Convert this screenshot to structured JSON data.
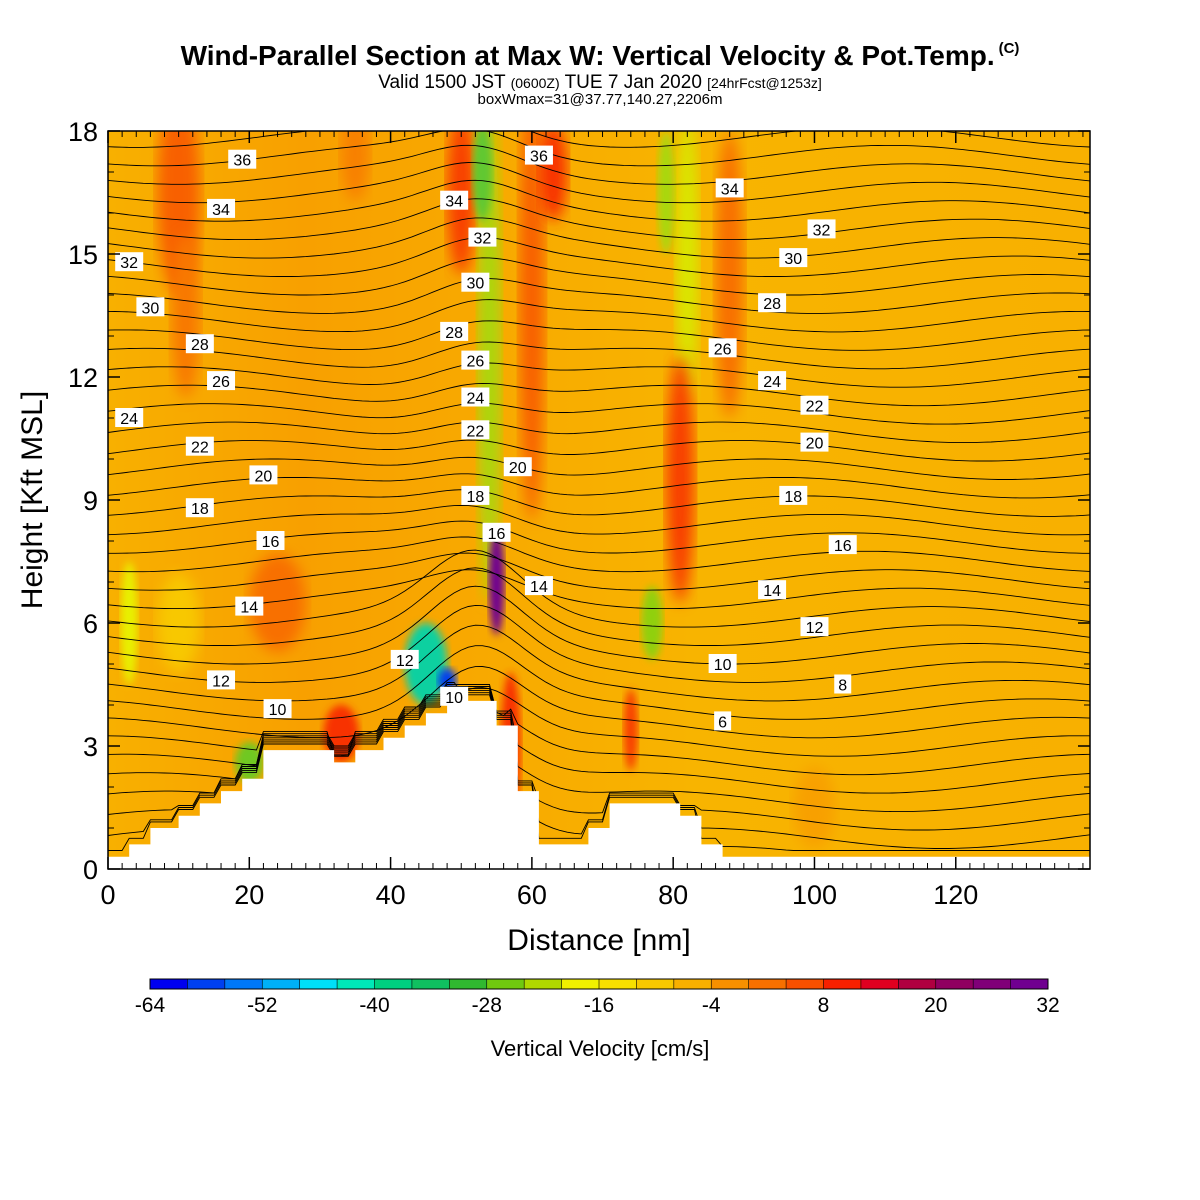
{
  "title": "Wind-Parallel Section at Max W: Vertical Velocity & Pot.Temp.",
  "title_note": "(C)",
  "subtitle": {
    "main": "Valid 1500 JST",
    "utc": "(0600Z)",
    "date": "TUE 7 Jan 2020",
    "fcst": "[24hrFcst@1253z]"
  },
  "subtitle2": "boxWmax=31@37.77,140.27,2206m",
  "chart_data": {
    "type": "heatmap",
    "xlabel": "Distance [nm]",
    "ylabel": "Height [Kft MSL]",
    "xlim": [
      0,
      139
    ],
    "ylim": [
      0,
      18
    ],
    "xticks": [
      0,
      20,
      40,
      60,
      80,
      100,
      120
    ],
    "yticks": [
      0,
      3,
      6,
      9,
      12,
      15,
      18
    ],
    "colorbar": {
      "label": "Vertical Velocity [cm/s]",
      "tick_labels": [
        "-64",
        "-52",
        "-40",
        "-28",
        "-16",
        "-4",
        "8",
        "20",
        "32"
      ],
      "colors": [
        "#0000f0",
        "#0040f0",
        "#0078f8",
        "#00b0f8",
        "#00e0f8",
        "#00e8b8",
        "#00d080",
        "#10c060",
        "#30b830",
        "#70c810",
        "#b0d800",
        "#f0f000",
        "#f8e000",
        "#f8c800",
        "#f8b000",
        "#f89000",
        "#f87000",
        "#f85000",
        "#f82000",
        "#e00020",
        "#b00040",
        "#900060",
        "#800078",
        "#700090"
      ]
    },
    "terrain_profile": {
      "x": [
        0,
        3,
        3,
        6,
        6,
        10,
        10,
        13,
        13,
        16,
        16,
        19,
        19,
        22,
        22,
        26,
        26,
        29,
        29,
        32,
        32,
        35,
        35,
        39,
        39,
        42,
        42,
        45,
        45,
        48,
        48,
        51,
        51,
        55,
        55,
        58,
        58,
        61,
        61,
        64,
        64,
        68,
        68,
        71,
        71,
        74,
        74,
        77,
        77,
        81,
        81,
        84,
        84,
        87,
        87,
        139
      ],
      "y": [
        0.3,
        0.3,
        0.6,
        0.6,
        1.0,
        1.0,
        1.3,
        1.3,
        1.6,
        1.6,
        1.9,
        1.9,
        2.2,
        2.2,
        2.9,
        2.9,
        2.9,
        2.9,
        2.9,
        2.9,
        2.6,
        2.6,
        2.9,
        2.9,
        3.2,
        3.2,
        3.5,
        3.5,
        3.8,
        3.8,
        4.1,
        4.1,
        4.1,
        4.1,
        3.5,
        3.5,
        1.9,
        1.9,
        0.6,
        0.6,
        0.6,
        0.6,
        1.0,
        1.0,
        1.6,
        1.6,
        1.6,
        1.6,
        1.6,
        1.6,
        1.3,
        1.3,
        0.6,
        0.6,
        0.3,
        0.3
      ]
    },
    "theta_contour_labels": [
      {
        "text": "36",
        "x": 19,
        "y": 17.3
      },
      {
        "text": "36",
        "x": 61,
        "y": 17.4
      },
      {
        "text": "34",
        "x": 16,
        "y": 16.1
      },
      {
        "text": "34",
        "x": 49,
        "y": 16.3
      },
      {
        "text": "34",
        "x": 88,
        "y": 16.6
      },
      {
        "text": "32",
        "x": 3,
        "y": 14.8
      },
      {
        "text": "32",
        "x": 53,
        "y": 15.4
      },
      {
        "text": "32",
        "x": 101,
        "y": 15.6
      },
      {
        "text": "30",
        "x": 6,
        "y": 13.7
      },
      {
        "text": "30",
        "x": 52,
        "y": 14.3
      },
      {
        "text": "30",
        "x": 97,
        "y": 14.9
      },
      {
        "text": "28",
        "x": 13,
        "y": 12.8
      },
      {
        "text": "28",
        "x": 49,
        "y": 13.1
      },
      {
        "text": "28",
        "x": 94,
        "y": 13.8
      },
      {
        "text": "26",
        "x": 16,
        "y": 11.9
      },
      {
        "text": "26",
        "x": 52,
        "y": 12.4
      },
      {
        "text": "26",
        "x": 87,
        "y": 12.7
      },
      {
        "text": "24",
        "x": 3,
        "y": 11.0
      },
      {
        "text": "24",
        "x": 52,
        "y": 11.5
      },
      {
        "text": "24",
        "x": 94,
        "y": 11.9
      },
      {
        "text": "22",
        "x": 13,
        "y": 10.3
      },
      {
        "text": "22",
        "x": 52,
        "y": 10.7
      },
      {
        "text": "22",
        "x": 100,
        "y": 11.3
      },
      {
        "text": "20",
        "x": 22,
        "y": 9.6
      },
      {
        "text": "20",
        "x": 58,
        "y": 9.8
      },
      {
        "text": "20",
        "x": 100,
        "y": 10.4
      },
      {
        "text": "18",
        "x": 13,
        "y": 8.8
      },
      {
        "text": "18",
        "x": 52,
        "y": 9.1
      },
      {
        "text": "18",
        "x": 97,
        "y": 9.1
      },
      {
        "text": "16",
        "x": 23,
        "y": 8.0
      },
      {
        "text": "16",
        "x": 55,
        "y": 8.2
      },
      {
        "text": "16",
        "x": 104,
        "y": 7.9
      },
      {
        "text": "14",
        "x": 20,
        "y": 6.4
      },
      {
        "text": "14",
        "x": 61,
        "y": 6.9
      },
      {
        "text": "14",
        "x": 94,
        "y": 6.8
      },
      {
        "text": "12",
        "x": 42,
        "y": 5.1
      },
      {
        "text": "12",
        "x": 16,
        "y": 4.6
      },
      {
        "text": "12",
        "x": 100,
        "y": 5.9
      },
      {
        "text": "10",
        "x": 24,
        "y": 3.9
      },
      {
        "text": "10",
        "x": 49,
        "y": 4.2
      },
      {
        "text": "10",
        "x": 87,
        "y": 5.0
      },
      {
        "text": "8",
        "x": 104,
        "y": 4.5
      },
      {
        "text": "6",
        "x": 87,
        "y": 3.6
      }
    ]
  }
}
